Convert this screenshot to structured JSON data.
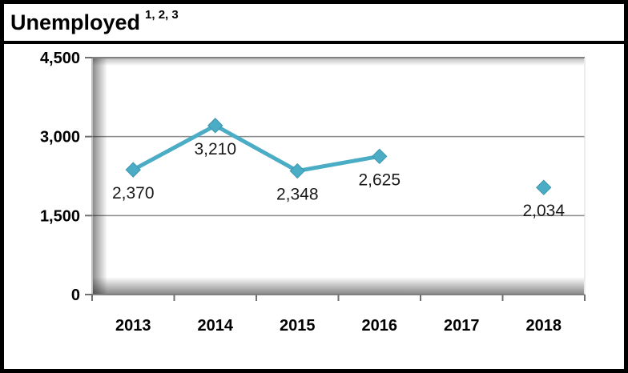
{
  "header": {
    "title": "Unemployed",
    "footnote_markers": "1, 2, 3"
  },
  "chart_data": {
    "type": "line",
    "title": "Unemployed 1, 2, 3",
    "categories": [
      "2013",
      "2014",
      "2015",
      "2016",
      "2017",
      "2018"
    ],
    "series": [
      {
        "name": "Unemployed",
        "values": [
          2370,
          3210,
          2348,
          2625,
          null,
          2034
        ]
      }
    ],
    "data_labels": [
      "2,370",
      "3,210",
      "2,348",
      "2,625",
      "",
      "2,034"
    ],
    "data_label_position": "below",
    "xlabel": "",
    "ylabel": "",
    "ylim": [
      0,
      4500
    ],
    "yticks": [
      {
        "value": 0,
        "label": "0"
      },
      {
        "value": 1500,
        "label": "1,500"
      },
      {
        "value": 3000,
        "label": "3,000"
      },
      {
        "value": 4500,
        "label": "4,500"
      }
    ],
    "grid": true,
    "legend_position": "none",
    "marker_shape": "diamond",
    "note": "2017 has no data point; line is broken between 2016 and 2018"
  },
  "colors": {
    "line": "#4BACC6",
    "marker": "#4BACC6",
    "marker_edge": "#3D95AE",
    "gridline": "#8a8a8a",
    "axis_line": "#808080",
    "tick": "#707070",
    "plot_right_edge": "#d9d9d9",
    "border": "#000000",
    "background": "#ffffff"
  }
}
